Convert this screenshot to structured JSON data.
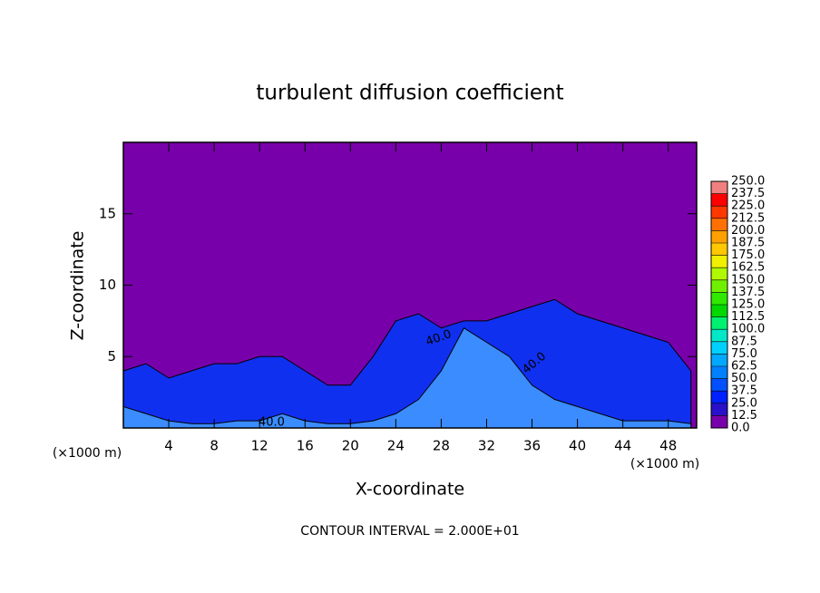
{
  "chart_data": {
    "type": "area",
    "title": "turbulent diffusion coefficient",
    "xlabel": "X-coordinate",
    "ylabel": "Z-coordinate",
    "x_unit": "(×1000 m)",
    "y_unit": "(×1000 m)",
    "footnote": "CONTOUR INTERVAL = 2.000E+01",
    "background_color": "#7800aa",
    "xlim": [
      0,
      50.5
    ],
    "ylim": [
      0,
      20
    ],
    "xticks": [
      4,
      8,
      12,
      16,
      20,
      24,
      28,
      32,
      36,
      40,
      44,
      48
    ],
    "yticks": [
      5,
      10,
      15
    ],
    "x": [
      0,
      2,
      4,
      6,
      8,
      10,
      12,
      14,
      16,
      18,
      20,
      22,
      24,
      26,
      28,
      30,
      32,
      34,
      36,
      38,
      40,
      42,
      44,
      46,
      48,
      50
    ],
    "series": [
      {
        "color": "#1030f0",
        "values": [
          4,
          4.5,
          3.5,
          4,
          4.5,
          4.5,
          5,
          5,
          4,
          3,
          3,
          5,
          7.5,
          8,
          7,
          7.5,
          7.5,
          8,
          8.5,
          9,
          8,
          7.5,
          7,
          6.5,
          6,
          4
        ]
      },
      {
        "color": "#3a8cff",
        "values": [
          1.5,
          1,
          0.5,
          0.3,
          0.3,
          0.5,
          0.5,
          1,
          0.5,
          0.3,
          0.3,
          0.5,
          1,
          2,
          4,
          7,
          6,
          5,
          3,
          2,
          1.5,
          1,
          0.5,
          0.5,
          0.5,
          0.3
        ]
      }
    ],
    "annotations": [
      "40.0",
      "40.0",
      "40.0"
    ],
    "colorbar": {
      "levels": [
        {
          "value": 0,
          "label": "0.0"
        },
        {
          "value": 12.5,
          "label": "12.5"
        },
        {
          "value": 25,
          "label": "25.0"
        },
        {
          "value": 37.5,
          "label": "37.5"
        },
        {
          "value": 50,
          "label": "50.0"
        },
        {
          "value": 62.5,
          "label": "62.5"
        },
        {
          "value": 75,
          "label": "75.0"
        },
        {
          "value": 87.5,
          "label": "87.5"
        },
        {
          "value": 100,
          "label": "100.0"
        },
        {
          "value": 112.5,
          "label": "112.5"
        },
        {
          "value": 125,
          "label": "125.0"
        },
        {
          "value": 137.5,
          "label": "137.5"
        },
        {
          "value": 150,
          "label": "150.0"
        },
        {
          "value": 162.5,
          "label": "162.5"
        },
        {
          "value": 175,
          "label": "175.0"
        },
        {
          "value": 187.5,
          "label": "187.5"
        },
        {
          "value": 200,
          "label": "200.0"
        },
        {
          "value": 212.5,
          "label": "212.5"
        },
        {
          "value": 225,
          "label": "225.0"
        },
        {
          "value": 237.5,
          "label": "237.5"
        },
        {
          "value": 250,
          "label": "250.0"
        }
      ],
      "colors": [
        "#7800aa",
        "#2a10c8",
        "#0020ff",
        "#0050ff",
        "#0080ff",
        "#00a8ff",
        "#00d0ff",
        "#00e8c8",
        "#00f070",
        "#00d800",
        "#30e800",
        "#70f000",
        "#b0f800",
        "#f0f000",
        "#ffc800",
        "#ffa000",
        "#ff7000",
        "#ff3800",
        "#ff0000",
        "#f08080"
      ]
    }
  }
}
